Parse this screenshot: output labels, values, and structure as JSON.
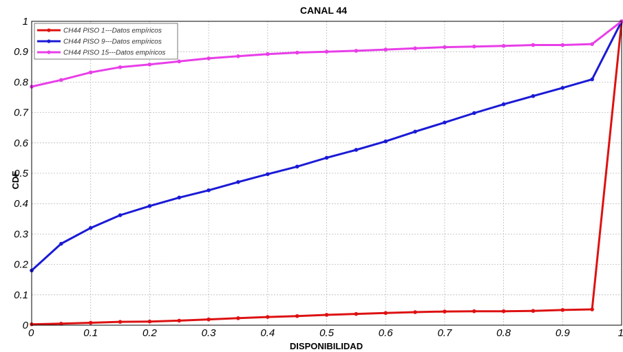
{
  "chart_data": {
    "type": "line",
    "title": "CANAL 44",
    "xlabel": "DISPONIBILIDAD",
    "ylabel": "CDF",
    "xlim": [
      0,
      1
    ],
    "ylim": [
      0,
      1
    ],
    "grid": true,
    "legend_position": "top-left",
    "x_ticks": [
      "0",
      "0.1",
      "0.2",
      "0.3",
      "0.4",
      "0.5",
      "0.6",
      "0.7",
      "0.8",
      "0.9",
      "1"
    ],
    "y_ticks": [
      "0",
      "0.1",
      "0.2",
      "0.3",
      "0.4",
      "0.5",
      "0.6",
      "0.7",
      "0.8",
      "0.9",
      "1"
    ],
    "x": [
      0,
      0.05,
      0.1,
      0.15,
      0.2,
      0.25,
      0.3,
      0.35,
      0.4,
      0.45,
      0.5,
      0.55,
      0.6,
      0.65,
      0.7,
      0.75,
      0.8,
      0.85,
      0.9,
      0.95,
      1
    ],
    "series": [
      {
        "name": "CH44 PISO 1---Datos empíricos",
        "color": "#dd1111",
        "values": [
          0.003,
          0.005,
          0.008,
          0.011,
          0.012,
          0.015,
          0.019,
          0.023,
          0.027,
          0.03,
          0.034,
          0.037,
          0.04,
          0.043,
          0.045,
          0.046,
          0.046,
          0.047,
          0.05,
          0.052,
          1.0
        ]
      },
      {
        "name": "CH44 PISO 9---Datos empíricos",
        "color": "#1a1ad6",
        "values": [
          0.18,
          0.268,
          0.32,
          0.362,
          0.392,
          0.42,
          0.444,
          0.471,
          0.497,
          0.522,
          0.551,
          0.577,
          0.605,
          0.637,
          0.667,
          0.698,
          0.727,
          0.754,
          0.781,
          0.809,
          1.0
        ]
      },
      {
        "name": "CH44 PISO 15---Datos empíricos",
        "color": "#e83ee8",
        "values": [
          0.785,
          0.807,
          0.832,
          0.849,
          0.858,
          0.868,
          0.878,
          0.885,
          0.892,
          0.897,
          0.9,
          0.903,
          0.907,
          0.911,
          0.915,
          0.917,
          0.919,
          0.922,
          0.922,
          0.925,
          1.0
        ]
      }
    ]
  }
}
